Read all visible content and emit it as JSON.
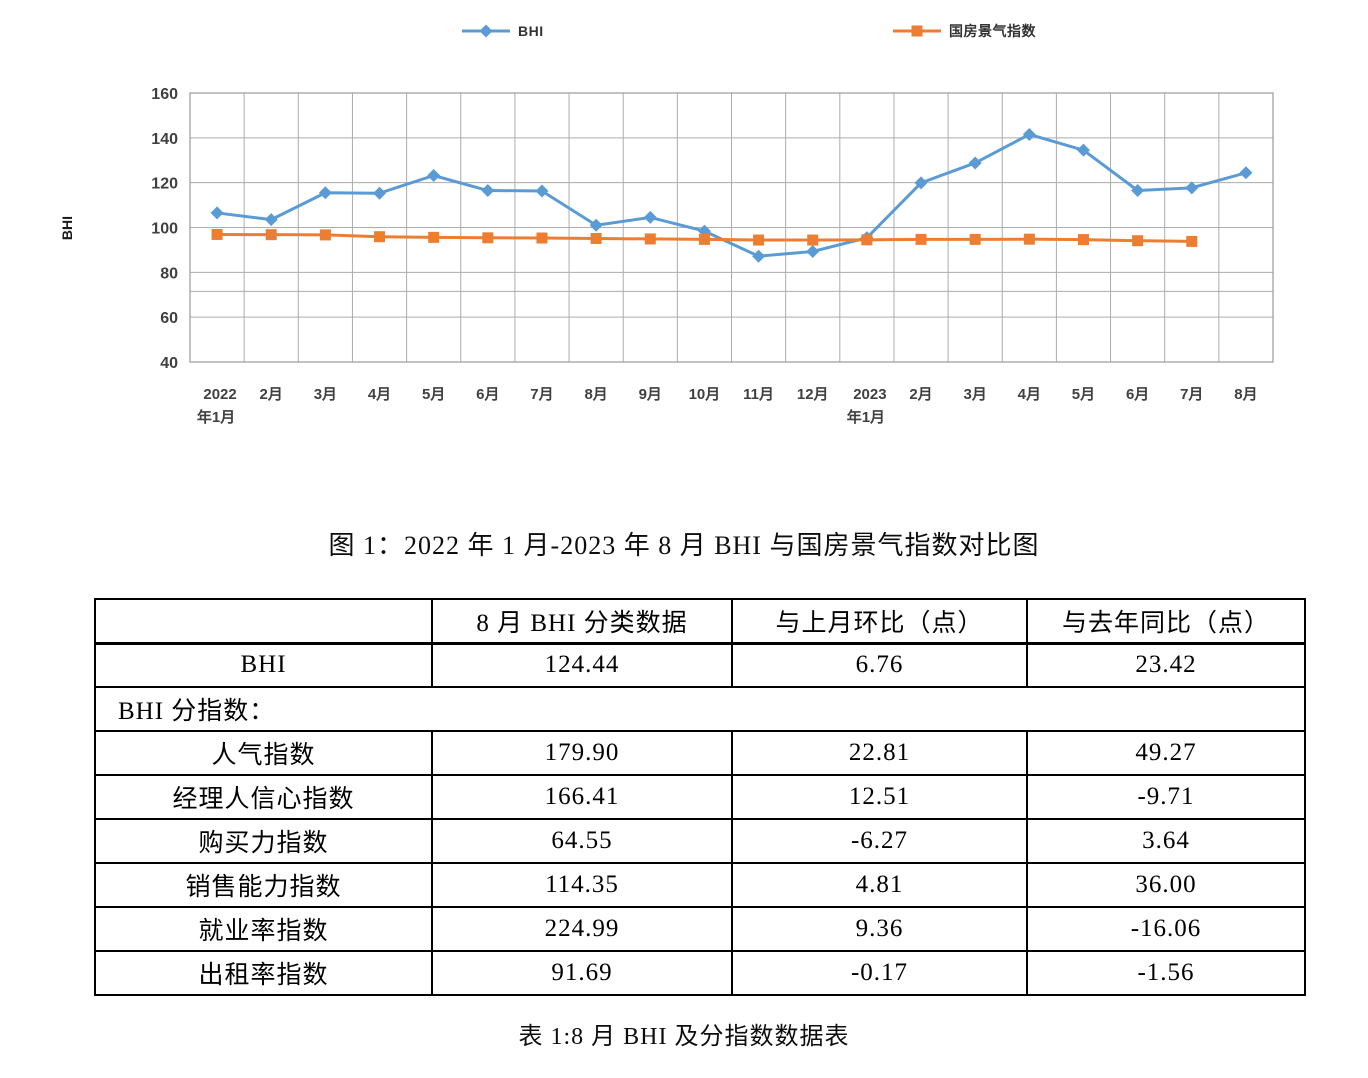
{
  "chart_data": {
    "type": "line",
    "title": "",
    "ylabel": "BHI",
    "xlabel": "",
    "ylim": [
      40,
      160
    ],
    "ytick_step": 20,
    "minor_gridline_at": 71.5,
    "grid": true,
    "legend_position": "top",
    "categories": [
      "2022年1月",
      "2月",
      "3月",
      "4月",
      "5月",
      "6月",
      "7月",
      "8月",
      "9月",
      "10月",
      "11月",
      "12月",
      "2023年1月",
      "2月",
      "3月",
      "4月",
      "5月",
      "6月",
      "7月",
      "8月"
    ],
    "series": [
      {
        "name": "BHI",
        "color": "#5B9BD5",
        "marker": "diamond",
        "values": [
          106.5,
          103.5,
          115.5,
          115.3,
          123.2,
          116.5,
          116.3,
          101.0,
          104.5,
          98.4,
          87.2,
          89.3,
          95.4,
          119.9,
          128.8,
          141.5,
          134.5,
          116.5,
          117.7,
          124.4
        ]
      },
      {
        "name": "国房景气指数",
        "color": "#ED7D31",
        "marker": "square",
        "values": [
          96.9,
          96.8,
          96.7,
          95.9,
          95.6,
          95.4,
          95.3,
          95.1,
          94.9,
          94.7,
          94.4,
          94.4,
          94.5,
          94.7,
          94.7,
          94.8,
          94.6,
          94.1,
          93.8,
          null
        ]
      }
    ]
  },
  "figure_caption": "图 1：2022 年 1 月-2023 年 8 月 BHI 与国房景气指数对比图",
  "table": {
    "headers": [
      "",
      "8 月 BHI 分类数据",
      "与上月环比（点）",
      "与去年同比（点）"
    ],
    "rows": [
      {
        "label": "BHI",
        "values": [
          "124.44",
          "6.76",
          "23.42"
        ]
      },
      {
        "label": "BHI 分指数：",
        "span": true
      },
      {
        "label": "人气指数",
        "values": [
          "179.90",
          "22.81",
          "49.27"
        ]
      },
      {
        "label": "经理人信心指数",
        "values": [
          "166.41",
          "12.51",
          "-9.71"
        ]
      },
      {
        "label": "购买力指数",
        "values": [
          "64.55",
          "-6.27",
          "3.64"
        ]
      },
      {
        "label": "销售能力指数",
        "values": [
          "114.35",
          "4.81",
          "36.00"
        ]
      },
      {
        "label": "就业率指数",
        "values": [
          "224.99",
          "9.36",
          "-16.06"
        ]
      },
      {
        "label": "出租率指数",
        "values": [
          "91.69",
          "-0.17",
          "-1.56"
        ]
      }
    ]
  },
  "table_caption": "表 1:8 月 BHI 及分指数数据表",
  "colors": {
    "grid": "#ACACAC",
    "plot_border": "#9A9A9A",
    "axis_text": "#404040"
  }
}
